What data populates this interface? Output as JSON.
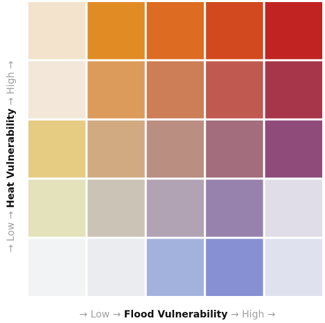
{
  "chart_data": {
    "type": "heatmap",
    "x_axis": {
      "low_label": "Low",
      "title": "Flood Vulnerability",
      "high_label": "High"
    },
    "y_axis": {
      "low_label": "Low",
      "title": "Heat Vulnerability",
      "high_label": "High"
    },
    "arrow_glyph": "→",
    "rows_top_to_bottom": [
      "High",
      "",
      "",
      "",
      "Low"
    ],
    "columns_left_to_right": [
      "Low",
      "",
      "",
      "",
      "High"
    ],
    "cell_colors": [
      [
        "#f3e3cd",
        "#e18b25",
        "#dd6b22",
        "#d3491f",
        "#c12323"
      ],
      [
        "#f2e7d8",
        "#dc9b5a",
        "#cd7e57",
        "#c05a51",
        "#a8364a"
      ],
      [
        "#e6cb83",
        "#d1aa81",
        "#ba8e81",
        "#a46d7d",
        "#8f4b7a"
      ],
      [
        "#e3e2ba",
        "#ccc3b7",
        "#b1a3b3",
        "#9782ae",
        "#e0dce8"
      ],
      [
        "#f2f3f4",
        "#eaecf0",
        "#a3b2dc",
        "#8690d3",
        "#dfe1ef"
      ]
    ]
  }
}
